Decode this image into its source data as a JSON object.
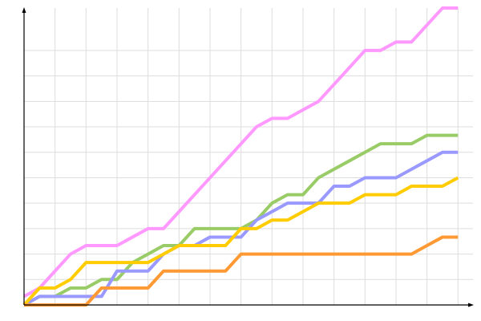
{
  "chart_data": {
    "type": "line",
    "title": "",
    "xlabel": "",
    "ylabel": "",
    "x": [
      0,
      1,
      2,
      3,
      4,
      5,
      6,
      7,
      8,
      9,
      10,
      11,
      12,
      13,
      14,
      15,
      16,
      17,
      18,
      19,
      20,
      21,
      22,
      23,
      24,
      25,
      26,
      27,
      28
    ],
    "xlim": [
      0,
      28
    ],
    "ylim": [
      0,
      35
    ],
    "grid": true,
    "x_grid_every": 2,
    "y_grid_every": 3,
    "y_grid_max": 30,
    "legend": "none",
    "series": [
      {
        "color": "#ff99ff",
        "values": [
          1,
          2,
          4,
          6,
          7,
          7,
          7,
          8,
          9,
          9,
          11,
          13,
          15,
          17,
          19,
          21,
          22,
          22,
          23,
          24,
          26,
          28,
          30,
          30,
          31,
          31,
          33,
          35,
          35
        ]
      },
      {
        "color": "#99cc66",
        "values": [
          0,
          1,
          1,
          2,
          2,
          3,
          3,
          5,
          6,
          7,
          7,
          9,
          9,
          9,
          9,
          10,
          12,
          13,
          13,
          15,
          16,
          17,
          18,
          19,
          19,
          19,
          20,
          20,
          20
        ]
      },
      {
        "color": "#9999ff",
        "values": [
          0,
          1,
          1,
          1,
          1,
          1,
          4,
          4,
          4,
          6,
          7,
          7,
          8,
          8,
          8,
          10,
          11,
          12,
          12,
          12,
          14,
          14,
          15,
          15,
          15,
          16,
          17,
          18,
          18
        ]
      },
      {
        "color": "#ffcc00",
        "values": [
          0,
          2,
          2,
          3,
          5,
          5,
          5,
          5,
          5,
          6,
          7,
          7,
          7,
          7,
          9,
          9,
          10,
          10,
          11,
          12,
          12,
          12,
          13,
          13,
          13,
          14,
          14,
          14,
          15
        ]
      },
      {
        "color": "#ff9933",
        "values": [
          0,
          0,
          0,
          0,
          0,
          2,
          2,
          2,
          2,
          4,
          4,
          4,
          4,
          4,
          6,
          6,
          6,
          6,
          6,
          6,
          6,
          6,
          6,
          6,
          6,
          6,
          7,
          8,
          8
        ]
      }
    ],
    "grid_color": "#dddddd",
    "axis_color": "#000000"
  }
}
